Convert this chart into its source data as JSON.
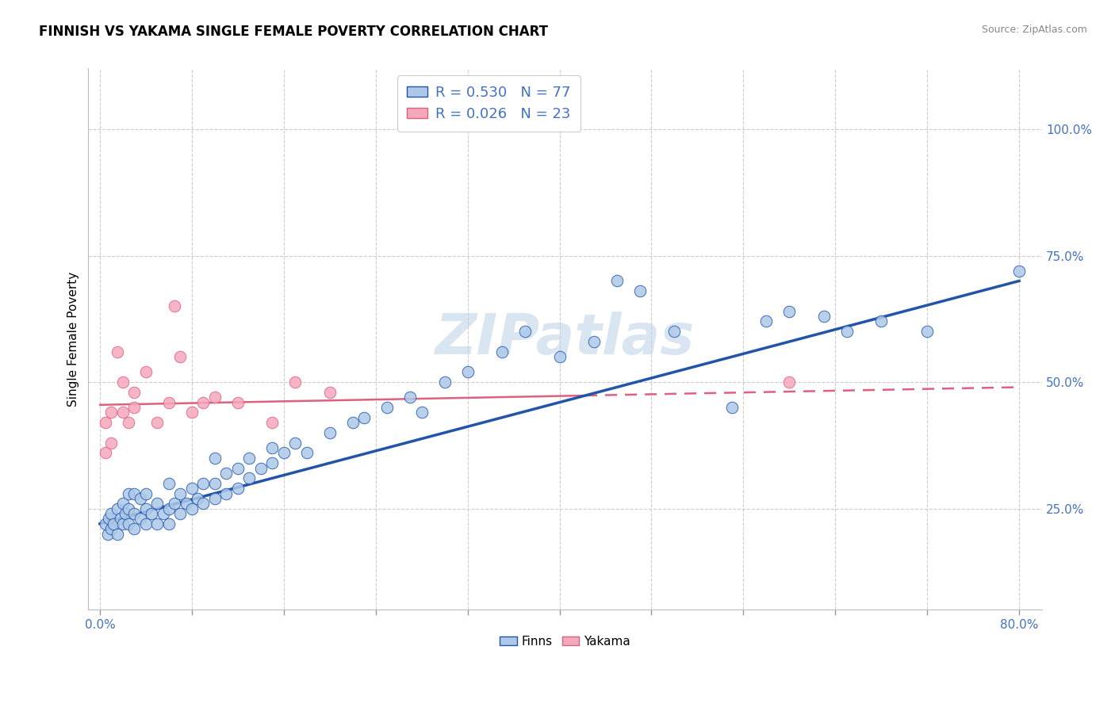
{
  "title": "FINNISH VS YAKAMA SINGLE FEMALE POVERTY CORRELATION CHART",
  "source": "Source: ZipAtlas.com",
  "ylabel": "Single Female Poverty",
  "ytick_labels": [
    "25.0%",
    "50.0%",
    "75.0%",
    "100.0%"
  ],
  "ytick_values": [
    0.25,
    0.5,
    0.75,
    1.0
  ],
  "xlim": [
    0.0,
    0.8
  ],
  "ylim": [
    0.05,
    1.1
  ],
  "finns_color": "#adc8e8",
  "yakama_color": "#f4a8bc",
  "finns_line_color": "#2255aa",
  "yakama_line_color": "#e06080",
  "watermark_text": "ZIPatlas",
  "watermark_color": "#c0d4e8",
  "finns_x": [
    0.005,
    0.007,
    0.008,
    0.01,
    0.01,
    0.012,
    0.015,
    0.015,
    0.018,
    0.02,
    0.02,
    0.022,
    0.025,
    0.025,
    0.025,
    0.03,
    0.03,
    0.03,
    0.035,
    0.035,
    0.04,
    0.04,
    0.04,
    0.045,
    0.05,
    0.05,
    0.055,
    0.06,
    0.06,
    0.06,
    0.065,
    0.07,
    0.07,
    0.075,
    0.08,
    0.08,
    0.085,
    0.09,
    0.09,
    0.1,
    0.1,
    0.1,
    0.11,
    0.11,
    0.12,
    0.12,
    0.13,
    0.13,
    0.14,
    0.15,
    0.15,
    0.16,
    0.17,
    0.18,
    0.2,
    0.22,
    0.23,
    0.25,
    0.27,
    0.28,
    0.3,
    0.32,
    0.35,
    0.37,
    0.4,
    0.43,
    0.45,
    0.47,
    0.5,
    0.55,
    0.58,
    0.6,
    0.63,
    0.65,
    0.68,
    0.72,
    0.8
  ],
  "finns_y": [
    0.22,
    0.2,
    0.23,
    0.21,
    0.24,
    0.22,
    0.2,
    0.25,
    0.23,
    0.22,
    0.26,
    0.24,
    0.22,
    0.25,
    0.28,
    0.21,
    0.24,
    0.28,
    0.23,
    0.27,
    0.22,
    0.25,
    0.28,
    0.24,
    0.22,
    0.26,
    0.24,
    0.22,
    0.25,
    0.3,
    0.26,
    0.24,
    0.28,
    0.26,
    0.25,
    0.29,
    0.27,
    0.26,
    0.3,
    0.27,
    0.3,
    0.35,
    0.28,
    0.32,
    0.29,
    0.33,
    0.31,
    0.35,
    0.33,
    0.34,
    0.37,
    0.36,
    0.38,
    0.36,
    0.4,
    0.42,
    0.43,
    0.45,
    0.47,
    0.44,
    0.5,
    0.52,
    0.56,
    0.6,
    0.55,
    0.58,
    0.7,
    0.68,
    0.6,
    0.45,
    0.62,
    0.64,
    0.63,
    0.6,
    0.62,
    0.6,
    0.72
  ],
  "yakama_x": [
    0.005,
    0.005,
    0.01,
    0.01,
    0.015,
    0.02,
    0.02,
    0.025,
    0.03,
    0.03,
    0.04,
    0.05,
    0.06,
    0.065,
    0.07,
    0.08,
    0.09,
    0.1,
    0.12,
    0.15,
    0.17,
    0.2,
    0.6
  ],
  "yakama_y": [
    0.42,
    0.36,
    0.44,
    0.38,
    0.56,
    0.44,
    0.5,
    0.42,
    0.48,
    0.45,
    0.52,
    0.42,
    0.46,
    0.65,
    0.55,
    0.44,
    0.46,
    0.47,
    0.46,
    0.42,
    0.5,
    0.48,
    0.5
  ],
  "finns_line_x": [
    0.0,
    0.8
  ],
  "finns_line_y": [
    0.22,
    0.7
  ],
  "yakama_line_x": [
    0.0,
    0.8
  ],
  "yakama_line_y": [
    0.455,
    0.49
  ]
}
